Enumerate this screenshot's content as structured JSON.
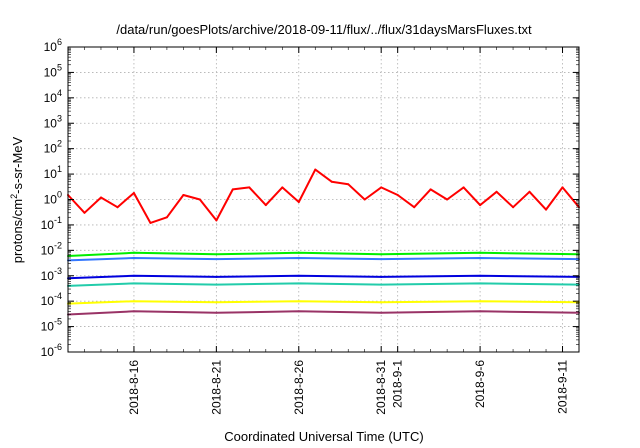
{
  "chart_data": {
    "type": "line",
    "title": "/data/run/goesPlots/archive/2018-09-11/flux/../flux/31daysMarsFluxes.txt",
    "xlabel": "Coordinated Universal Time (UTC)",
    "ylabel": "protons/cm2-s-sr-MeV",
    "ylabel_parts": {
      "pre": "protons/cm",
      "sup": "2",
      "post": "-s-sr-MeV"
    },
    "yscale": "log",
    "ylim": [
      1e-06,
      1000000.0
    ],
    "xlim": [
      "2018-08-12",
      "2018-09-12"
    ],
    "x_ticks": [
      {
        "date": "2018-08-16",
        "label": "2018-8-16"
      },
      {
        "date": "2018-08-21",
        "label": "2018-8-21"
      },
      {
        "date": "2018-08-26",
        "label": "2018-8-26"
      },
      {
        "date": "2018-08-31",
        "label": "2018-8-31"
      },
      {
        "date": "2018-09-01",
        "label": "2018-9-1"
      },
      {
        "date": "2018-09-06",
        "label": "2018-9-6"
      },
      {
        "date": "2018-09-11",
        "label": "2018-9-11"
      }
    ],
    "y_ticks": [
      {
        "exp": "-6"
      },
      {
        "exp": "-5"
      },
      {
        "exp": "-4"
      },
      {
        "exp": "-3"
      },
      {
        "exp": "-2"
      },
      {
        "exp": "-1"
      },
      {
        "exp": "0"
      },
      {
        "exp": "1"
      },
      {
        "exp": "2"
      },
      {
        "exp": "3"
      },
      {
        "exp": "4"
      },
      {
        "exp": "5"
      },
      {
        "exp": "6"
      }
    ],
    "grid": true,
    "series": [
      {
        "color": "#ff0000",
        "x": [
          "2018-08-12",
          "2018-08-13",
          "2018-08-14",
          "2018-08-15",
          "2018-08-16",
          "2018-08-17",
          "2018-08-18",
          "2018-08-19",
          "2018-08-20",
          "2018-08-21",
          "2018-08-22",
          "2018-08-23",
          "2018-08-24",
          "2018-08-25",
          "2018-08-26",
          "2018-08-27",
          "2018-08-28",
          "2018-08-29",
          "2018-08-30",
          "2018-08-31",
          "2018-09-01",
          "2018-09-02",
          "2018-09-03",
          "2018-09-04",
          "2018-09-05",
          "2018-09-06",
          "2018-09-07",
          "2018-09-08",
          "2018-09-09",
          "2018-09-10",
          "2018-09-11",
          "2018-09-12"
        ],
        "values": [
          1.5,
          0.3,
          1.2,
          0.5,
          1.8,
          0.12,
          0.2,
          1.5,
          1.0,
          0.15,
          2.5,
          3.0,
          0.6,
          3.0,
          0.8,
          15,
          5.0,
          4.0,
          1.0,
          3.0,
          1.5,
          0.5,
          2.5,
          1.0,
          3.0,
          0.6,
          2.0,
          0.5,
          2.0,
          0.4,
          3.0,
          0.5
        ]
      },
      {
        "color": "#00ee00",
        "x": [
          "2018-08-12",
          "2018-08-16",
          "2018-08-21",
          "2018-08-26",
          "2018-08-31",
          "2018-09-06",
          "2018-09-12"
        ],
        "values": [
          0.006,
          0.008,
          0.007,
          0.008,
          0.007,
          0.008,
          0.007
        ]
      },
      {
        "color": "#3377ff",
        "x": [
          "2018-08-12",
          "2018-08-16",
          "2018-08-21",
          "2018-08-26",
          "2018-08-31",
          "2018-09-06",
          "2018-09-12"
        ],
        "values": [
          0.004,
          0.005,
          0.0045,
          0.005,
          0.0045,
          0.005,
          0.0045
        ]
      },
      {
        "color": "#0000dd",
        "x": [
          "2018-08-12",
          "2018-08-16",
          "2018-08-21",
          "2018-08-26",
          "2018-08-31",
          "2018-09-06",
          "2018-09-12"
        ],
        "values": [
          0.0008,
          0.001,
          0.0009,
          0.001,
          0.0009,
          0.001,
          0.0009
        ]
      },
      {
        "color": "#22ccaa",
        "x": [
          "2018-08-12",
          "2018-08-16",
          "2018-08-21",
          "2018-08-26",
          "2018-08-31",
          "2018-09-06",
          "2018-09-12"
        ],
        "values": [
          0.0004,
          0.0005,
          0.00045,
          0.0005,
          0.00045,
          0.0005,
          0.00045
        ]
      },
      {
        "color": "#ffff00",
        "x": [
          "2018-08-12",
          "2018-08-16",
          "2018-08-21",
          "2018-08-26",
          "2018-08-31",
          "2018-09-06",
          "2018-09-12"
        ],
        "values": [
          8e-05,
          0.0001,
          9e-05,
          0.0001,
          9e-05,
          0.0001,
          9e-05
        ]
      },
      {
        "color": "#993366",
        "x": [
          "2018-08-12",
          "2018-08-16",
          "2018-08-21",
          "2018-08-26",
          "2018-08-31",
          "2018-09-06",
          "2018-09-12"
        ],
        "values": [
          3e-05,
          4e-05,
          3.5e-05,
          4e-05,
          3.5e-05,
          4e-05,
          3.5e-05
        ]
      }
    ]
  }
}
